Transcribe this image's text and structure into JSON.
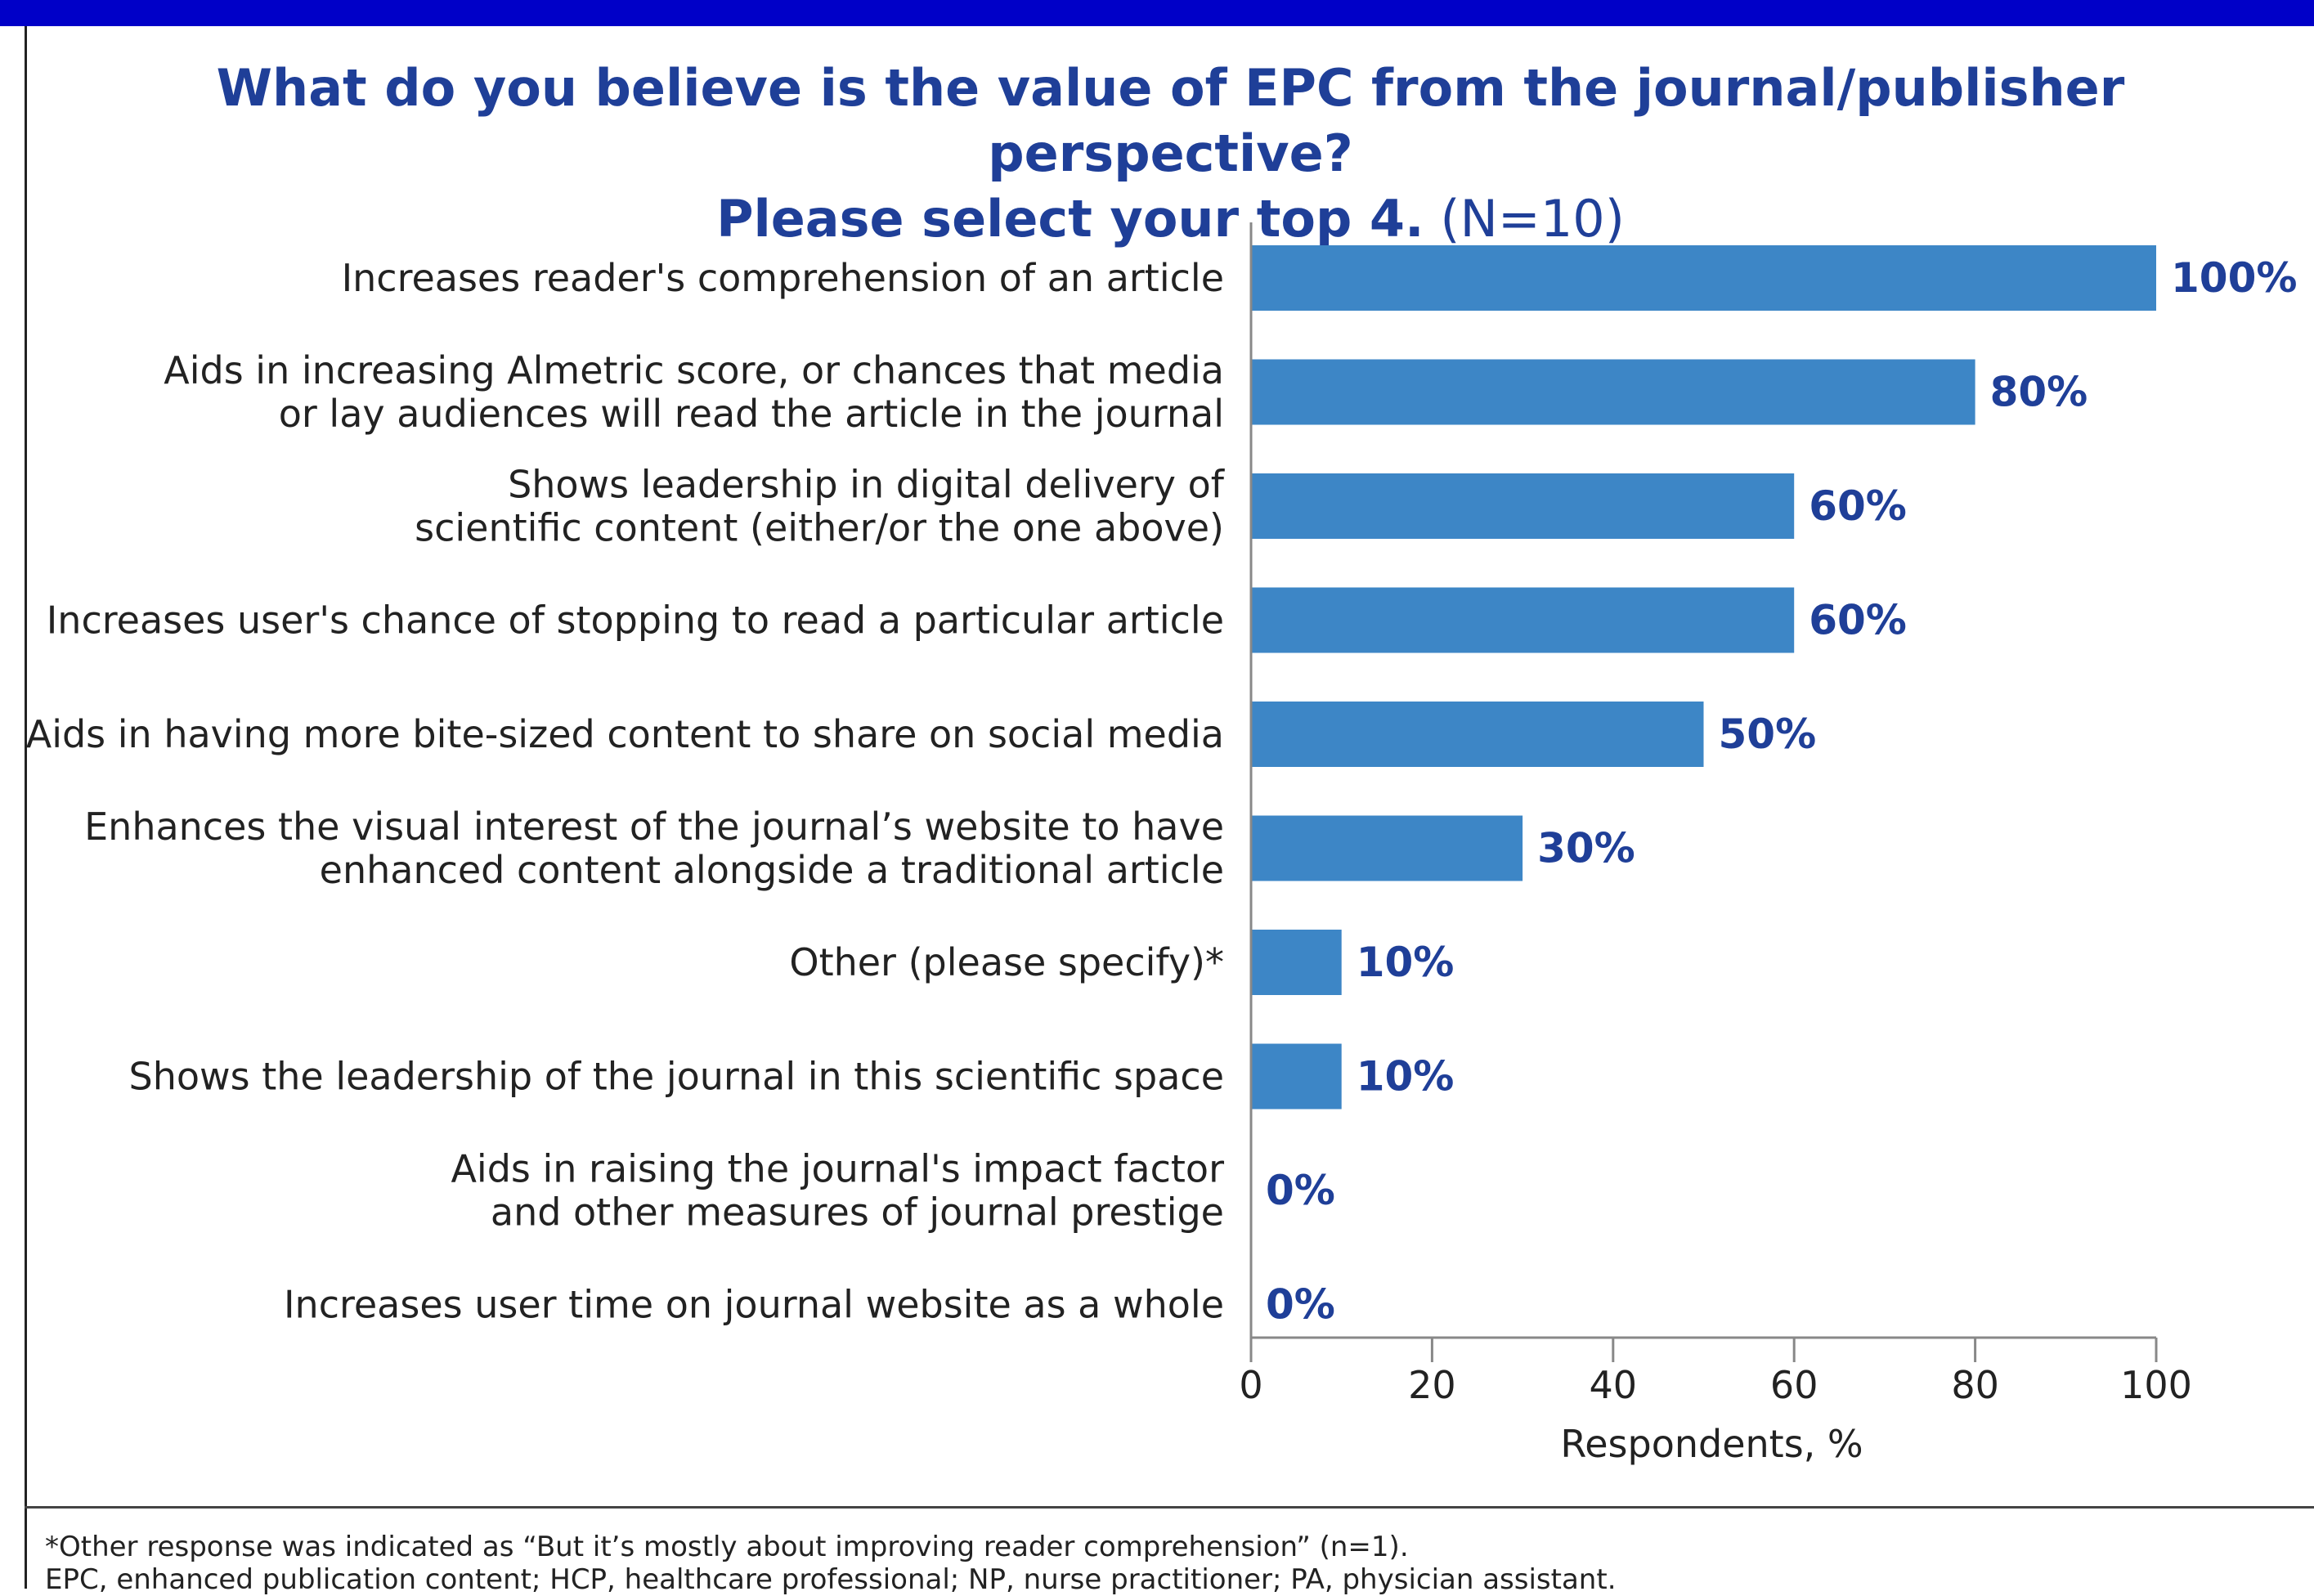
{
  "header": {
    "title_line1": "What do you believe is the value of EPC from the journal/publisher perspective?",
    "title_line2_bold": "Please select your top 4.",
    "title_line2_normal": " (N=10)"
  },
  "colors": {
    "bar": "#3d86c6",
    "label": "#1f3f98",
    "top_bar": "#0000c8"
  },
  "chart_data": {
    "type": "bar",
    "orientation": "horizontal",
    "categories": [
      [
        "Increases reader's comprehension of an article"
      ],
      [
        "Aids in increasing Almetric score, or chances that media",
        "or lay audiences will read the article in the journal"
      ],
      [
        "Shows leadership in digital delivery of",
        "scientific content (either/or the one above)"
      ],
      [
        "Increases user's chance of stopping to read a particular article"
      ],
      [
        "Aids in having more bite-sized content to share on social media"
      ],
      [
        "Enhances the visual interest of the journal’s website to have",
        "enhanced content alongside a traditional article"
      ],
      [
        "Other (please specify)*"
      ],
      [
        "Shows the leadership of the journal in this scientific space"
      ],
      [
        "Aids in raising the journal's impact factor",
        "and other measures of journal prestige"
      ],
      [
        "Increases user time on journal website as a whole"
      ]
    ],
    "values": [
      100,
      80,
      60,
      60,
      50,
      30,
      10,
      10,
      0,
      0
    ],
    "value_labels": [
      "100%",
      "80%",
      "60%",
      "60%",
      "50%",
      "30%",
      "10%",
      "10%",
      "0%",
      "0%"
    ],
    "xlabel": "Respondents, %",
    "xlim": [
      0,
      100
    ],
    "xticks": [
      0,
      20,
      40,
      60,
      80,
      100
    ],
    "grid": false,
    "legend": "none"
  },
  "footnotes": {
    "line1": "*Other response was indicated as “But it’s mostly about improving reader comprehension” (n=1).",
    "line2": "EPC, enhanced publication content; HCP, healthcare professional; NP, nurse practitioner; PA, physician assistant."
  }
}
